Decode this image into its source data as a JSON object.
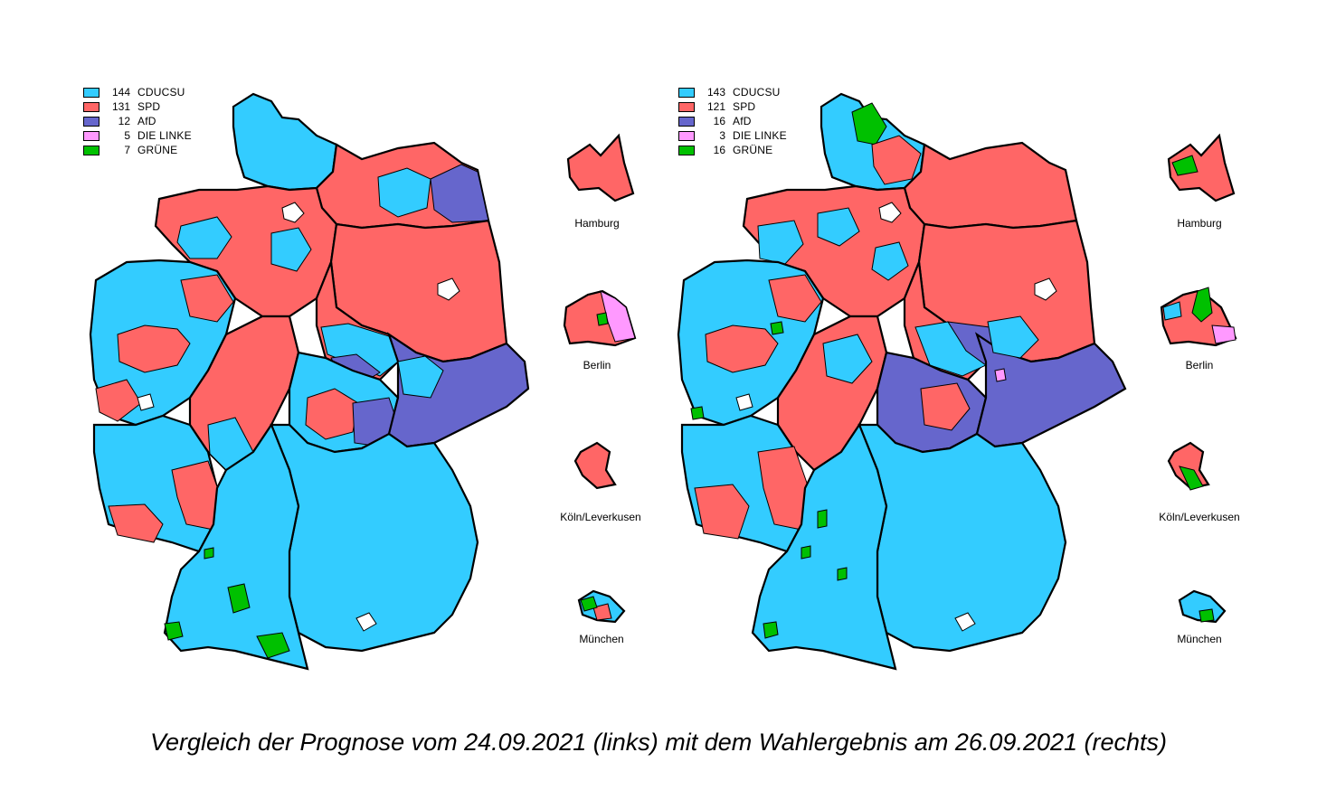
{
  "colors": {
    "cducsu": "#33ccff",
    "spd": "#ff6666",
    "afd": "#6666cc",
    "linke": "#ff99ff",
    "gruene": "#00c000"
  },
  "left": {
    "legend": [
      {
        "seats": "144",
        "party": "CDUCSU",
        "color": "#33ccff"
      },
      {
        "seats": "131",
        "party": "SPD",
        "color": "#ff6666"
      },
      {
        "seats": "12",
        "party": "AfD",
        "color": "#6666cc"
      },
      {
        "seats": "5",
        "party": "DIE LINKE",
        "color": "#ff99ff"
      },
      {
        "seats": "7",
        "party": "GRÜNE",
        "color": "#00c000"
      }
    ],
    "insets": {
      "hamburg": "Hamburg",
      "berlin": "Berlin",
      "koeln": "Köln/Leverkusen",
      "muenchen": "München"
    }
  },
  "right": {
    "legend": [
      {
        "seats": "143",
        "party": "CDUCSU",
        "color": "#33ccff"
      },
      {
        "seats": "121",
        "party": "SPD",
        "color": "#ff6666"
      },
      {
        "seats": "16",
        "party": "AfD",
        "color": "#6666cc"
      },
      {
        "seats": "3",
        "party": "DIE LINKE",
        "color": "#ff99ff"
      },
      {
        "seats": "16",
        "party": "GRÜNE",
        "color": "#00c000"
      }
    ],
    "insets": {
      "hamburg": "Hamburg",
      "berlin": "Berlin",
      "koeln": "Köln/Leverkusen",
      "muenchen": "München"
    }
  },
  "caption": "Vergleich der Prognose vom 24.09.2021 (links) mit dem Wahlergebnis am 26.09.2021 (rechts)"
}
